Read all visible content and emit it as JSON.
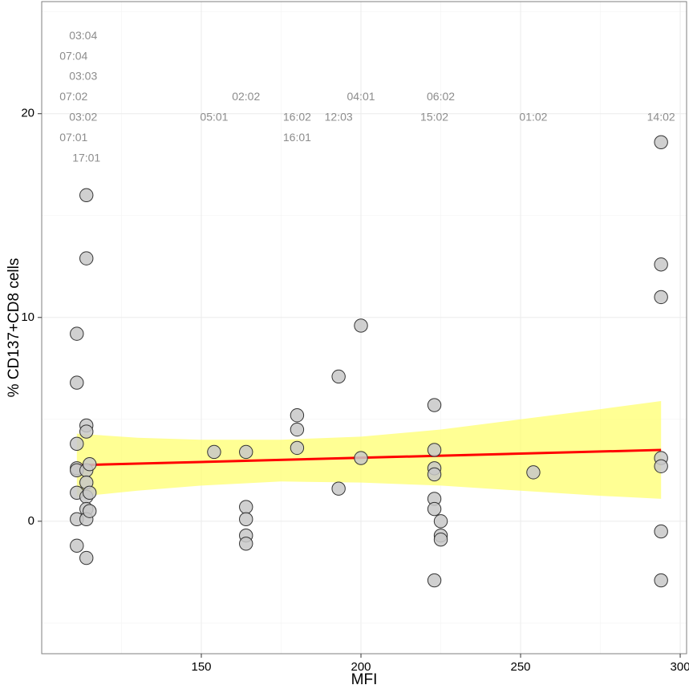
{
  "chart_data": {
    "type": "scatter",
    "title": "",
    "xlabel": "MFI",
    "ylabel": "% CD137+CD8 cells",
    "xlim": [
      100,
      302
    ],
    "ylim": [
      -6.5,
      25.5
    ],
    "x_ticks": [
      150,
      200,
      250,
      300
    ],
    "x_tick_labels": [
      "150",
      "200",
      "250",
      "300"
    ],
    "y_ticks": [
      0,
      10,
      20
    ],
    "y_tick_labels": [
      "0",
      "10",
      "20"
    ],
    "grid": true,
    "legend": "none",
    "points": [
      {
        "x": 111,
        "y": 9.2
      },
      {
        "x": 111,
        "y": 6.8
      },
      {
        "x": 111,
        "y": 3.8
      },
      {
        "x": 111,
        "y": 2.6
      },
      {
        "x": 111,
        "y": 2.5
      },
      {
        "x": 111,
        "y": 1.4
      },
      {
        "x": 111,
        "y": 0.1
      },
      {
        "x": 111,
        "y": -1.2
      },
      {
        "x": 114,
        "y": 16.0
      },
      {
        "x": 114,
        "y": 12.9
      },
      {
        "x": 114,
        "y": 4.7
      },
      {
        "x": 114,
        "y": 4.4
      },
      {
        "x": 114,
        "y": 2.5
      },
      {
        "x": 114,
        "y": 1.9
      },
      {
        "x": 114,
        "y": 1.2
      },
      {
        "x": 114,
        "y": 0.6
      },
      {
        "x": 114,
        "y": 0.1
      },
      {
        "x": 114,
        "y": -1.8
      },
      {
        "x": 115,
        "y": 2.8
      },
      {
        "x": 115,
        "y": 1.4
      },
      {
        "x": 115,
        "y": 0.5
      },
      {
        "x": 154,
        "y": 3.4
      },
      {
        "x": 164,
        "y": 3.4
      },
      {
        "x": 164,
        "y": 0.7
      },
      {
        "x": 164,
        "y": 0.1
      },
      {
        "x": 164,
        "y": -0.7
      },
      {
        "x": 164,
        "y": -1.1
      },
      {
        "x": 180,
        "y": 5.2
      },
      {
        "x": 180,
        "y": 4.5
      },
      {
        "x": 180,
        "y": 3.6
      },
      {
        "x": 193,
        "y": 7.1
      },
      {
        "x": 193,
        "y": 1.6
      },
      {
        "x": 200,
        "y": 9.6
      },
      {
        "x": 200,
        "y": 3.1
      },
      {
        "x": 223,
        "y": 5.7
      },
      {
        "x": 223,
        "y": 3.5
      },
      {
        "x": 223,
        "y": 2.6
      },
      {
        "x": 223,
        "y": 2.3
      },
      {
        "x": 223,
        "y": 1.1
      },
      {
        "x": 223,
        "y": 0.6
      },
      {
        "x": 223,
        "y": -2.9
      },
      {
        "x": 225,
        "y": 0.0
      },
      {
        "x": 225,
        "y": -0.7
      },
      {
        "x": 225,
        "y": -0.9
      },
      {
        "x": 254,
        "y": 2.4
      },
      {
        "x": 294,
        "y": 18.6
      },
      {
        "x": 294,
        "y": 12.6
      },
      {
        "x": 294,
        "y": 11.0
      },
      {
        "x": 294,
        "y": 3.1
      },
      {
        "x": 294,
        "y": 2.7
      },
      {
        "x": 294,
        "y": -0.5
      },
      {
        "x": 294,
        "y": -2.9
      }
    ],
    "fit_line": {
      "x": [
        111,
        294
      ],
      "y": [
        2.75,
        3.5
      ],
      "color": "#ff0000"
    },
    "confidence_band": {
      "x": [
        111,
        130,
        150,
        175,
        200,
        225,
        250,
        275,
        294
      ],
      "lower": [
        1.2,
        1.5,
        1.75,
        1.95,
        1.9,
        1.75,
        1.5,
        1.25,
        1.1
      ],
      "upper": [
        4.3,
        4.1,
        4.0,
        4.0,
        4.15,
        4.5,
        5.0,
        5.5,
        5.9
      ],
      "color": "#ffff66"
    },
    "annotations": [
      {
        "text": "03:04",
        "x": 113,
        "y": 23.8
      },
      {
        "text": "07:04",
        "x": 110,
        "y": 22.8
      },
      {
        "text": "03:03",
        "x": 113,
        "y": 21.8
      },
      {
        "text": "07:02",
        "x": 110,
        "y": 20.8
      },
      {
        "text": "03:02",
        "x": 113,
        "y": 19.8
      },
      {
        "text": "07:01",
        "x": 110,
        "y": 18.8
      },
      {
        "text": "17:01",
        "x": 114,
        "y": 17.8
      },
      {
        "text": "05:01",
        "x": 154,
        "y": 19.8
      },
      {
        "text": "02:02",
        "x": 164,
        "y": 20.8
      },
      {
        "text": "16:02",
        "x": 180,
        "y": 19.8
      },
      {
        "text": "16:01",
        "x": 180,
        "y": 18.8
      },
      {
        "text": "12:03",
        "x": 193,
        "y": 19.8
      },
      {
        "text": "04:01",
        "x": 200,
        "y": 20.8
      },
      {
        "text": "06:02",
        "x": 225,
        "y": 20.8
      },
      {
        "text": "15:02",
        "x": 223,
        "y": 19.8
      },
      {
        "text": "01:02",
        "x": 254,
        "y": 19.8
      },
      {
        "text": "14:02",
        "x": 294,
        "y": 19.8
      }
    ],
    "colors": {
      "point_fill": "#c8c8c8",
      "point_stroke": "#333333",
      "annotation": "#8c8c8c",
      "grid": "#ebebeb",
      "frame": "#7f7f7f"
    }
  }
}
